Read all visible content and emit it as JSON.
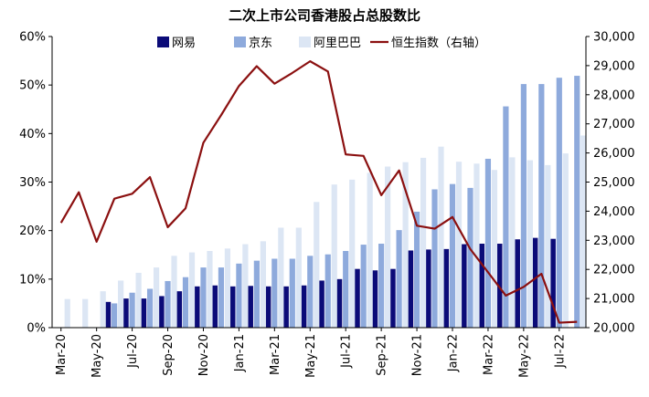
{
  "chart_data": {
    "type": "bar",
    "title": "二次上市公司香港股占总股数比",
    "categories": [
      "Mar-20",
      "Apr-20",
      "May-20",
      "Jun-20",
      "Jul-20",
      "Aug-20",
      "Sep-20",
      "Oct-20",
      "Nov-20",
      "Dec-20",
      "Jan-21",
      "Feb-21",
      "Mar-21",
      "Apr-21",
      "May-21",
      "Jun-21",
      "Jul-21",
      "Aug-21",
      "Sep-21",
      "Oct-21",
      "Nov-21",
      "Dec-21",
      "Jan-22",
      "Feb-22",
      "Mar-22",
      "Apr-22",
      "May-22",
      "Jun-22",
      "Jul-22",
      "Aug-22"
    ],
    "x_tick_labels": [
      "Mar-20",
      "May-20",
      "Jul-20",
      "Sep-20",
      "Nov-20",
      "Jan-21",
      "Mar-21",
      "May-21",
      "Jul-21",
      "Sep-21",
      "Nov-21",
      "Jan-22",
      "Mar-22",
      "May-22",
      "Jul-22"
    ],
    "series": [
      {
        "name": "网易",
        "type": "bar",
        "axis": "left",
        "color": "#0b0b78",
        "values": [
          null,
          null,
          null,
          5.3,
          6.0,
          6.0,
          6.5,
          7.5,
          8.5,
          8.7,
          8.5,
          8.6,
          8.5,
          8.5,
          8.7,
          9.7,
          10.0,
          12.1,
          11.8,
          12.1,
          15.9,
          16.1,
          16.2,
          17.2,
          17.3,
          17.3,
          18.2,
          18.5,
          18.3,
          null
        ]
      },
      {
        "name": "京东",
        "type": "bar",
        "axis": "left",
        "color": "#8eaadc",
        "values": [
          null,
          null,
          null,
          5.0,
          7.2,
          8.0,
          9.6,
          10.4,
          12.4,
          12.4,
          13.2,
          13.8,
          14.2,
          14.2,
          14.8,
          15.1,
          15.8,
          17.1,
          17.3,
          20.1,
          23.9,
          28.5,
          29.6,
          28.8,
          34.8,
          45.6,
          50.2,
          50.2,
          51.5,
          51.9
        ]
      },
      {
        "name": "阿里巴巴",
        "type": "bar",
        "axis": "left",
        "color": "#dce6f4",
        "values": [
          5.9,
          5.9,
          7.5,
          9.7,
          11.3,
          12.4,
          14.8,
          15.5,
          15.8,
          16.3,
          17.2,
          17.8,
          20.6,
          20.6,
          25.9,
          29.5,
          30.5,
          31.9,
          33.2,
          34.1,
          35.0,
          37.3,
          34.2,
          33.8,
          32.5,
          35.1,
          34.5,
          33.5,
          35.9,
          39.6
        ]
      },
      {
        "name": "恒生指数（右轴）",
        "type": "line",
        "axis": "right",
        "color": "#8b1010",
        "values": [
          23600,
          24650,
          22950,
          24430,
          24600,
          25170,
          23450,
          24100,
          26350,
          27300,
          28300,
          28980,
          28380,
          28750,
          29150,
          28800,
          25950,
          25900,
          24550,
          25400,
          23500,
          23400,
          23800,
          22700,
          21900,
          21100,
          21400,
          21850,
          20170,
          20200
        ]
      }
    ],
    "y_left": {
      "min": 0,
      "max": 60,
      "step": 10,
      "tick_labels": [
        "0%",
        "10%",
        "20%",
        "30%",
        "40%",
        "50%",
        "60%"
      ]
    },
    "y_right": {
      "min": 20000,
      "max": 30000,
      "step": 1000,
      "tick_labels": [
        "20,000",
        "21,000",
        "22,000",
        "23,000",
        "24,000",
        "25,000",
        "26,000",
        "27,000",
        "28,000",
        "29,000",
        "30,000"
      ]
    },
    "legend_position": "top",
    "grid": false
  }
}
